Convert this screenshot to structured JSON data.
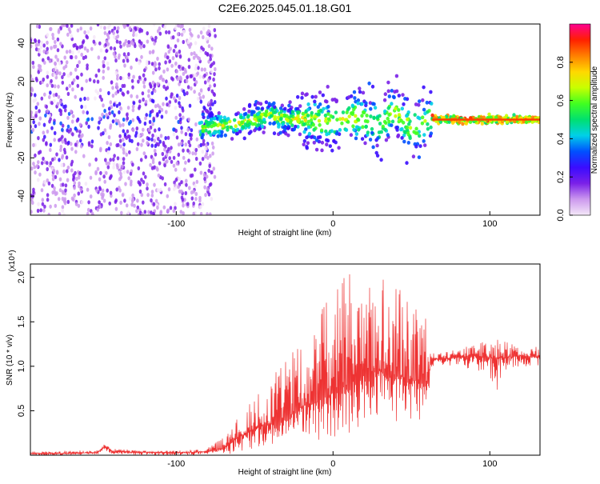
{
  "title": "C2E6.2025.045.01.18.G01",
  "chart_data": [
    {
      "type": "heatmap",
      "xlabel": "Height of straight line (km)",
      "ylabel": "Frequency (Hz)",
      "xlim": [
        -193,
        132
      ],
      "ylim": [
        -50,
        50
      ],
      "x_ticks": [
        "-100",
        "0",
        "100"
      ],
      "y_ticks": [
        "40",
        "20",
        "0",
        "-20",
        "-40"
      ],
      "colorbar": {
        "label": "Normalized spectral amplitude",
        "range": [
          0,
          1
        ],
        "ticks": [
          "0.8",
          "0.6",
          "0.4",
          "0.2",
          "0.0"
        ],
        "colors": [
          "#f4e8f8",
          "#cc99ee",
          "#7a20e8",
          "#3a0cff",
          "#0050ff",
          "#00d0e8",
          "#00e070",
          "#40ff20",
          "#c8ff00",
          "#ffd800",
          "#ff8000",
          "#ff2000",
          "#ff0090"
        ]
      },
      "ridge": {
        "x": [
          -80,
          -70,
          -60,
          -50,
          -40,
          -30,
          -20,
          -10,
          0,
          10,
          20,
          30,
          38,
          45,
          50,
          55,
          60,
          70,
          80,
          100,
          132
        ],
        "y": [
          -4,
          -3,
          -2,
          0,
          3,
          0,
          1,
          0,
          -2,
          2,
          0,
          -3,
          5,
          0,
          -6,
          -3,
          0,
          0,
          0,
          0,
          0
        ]
      }
    },
    {
      "type": "line",
      "xlabel": "Height of straight line (km)",
      "ylabel": "SNR (10 * v/v)",
      "y_exponent_label": "(x10⁴)",
      "xlim": [
        -193,
        132
      ],
      "ylim": [
        0,
        2.15
      ],
      "x_ticks": [
        "-100",
        "0",
        "100"
      ],
      "y_ticks": [
        "2.0",
        "1.5",
        "1.0",
        "0.5"
      ],
      "color": "#ee3333",
      "series": [
        {
          "x": [
            -193,
            -170,
            -150,
            -145,
            -140,
            -120,
            -100,
            -80,
            -70,
            -60,
            -50,
            -40,
            -30,
            -20,
            -10,
            0,
            10,
            20,
            30,
            40,
            50,
            60,
            63,
            70,
            80,
            90,
            100,
            105,
            110,
            120,
            132
          ],
          "y": [
            0.02,
            0.02,
            0.03,
            0.1,
            0.04,
            0.03,
            0.03,
            0.04,
            0.08,
            0.2,
            0.3,
            0.35,
            0.4,
            0.55,
            0.6,
            0.7,
            0.8,
            0.9,
            0.95,
            0.9,
            0.85,
            0.8,
            1.08,
            1.08,
            1.1,
            1.12,
            1.1,
            1.1,
            1.1,
            1.12,
            1.1
          ],
          "y_max": [
            0.04,
            0.05,
            0.06,
            0.16,
            0.08,
            0.05,
            0.05,
            0.08,
            0.2,
            0.45,
            0.65,
            0.85,
            1.1,
            1.3,
            1.6,
            1.9,
            2.05,
            1.9,
            2.12,
            1.95,
            1.75,
            1.55,
            1.15,
            1.15,
            1.2,
            1.25,
            1.3,
            1.35,
            1.3,
            1.25,
            1.25
          ],
          "y_min": [
            0.0,
            0.0,
            0.01,
            0.04,
            0.01,
            0.0,
            0.0,
            0.0,
            0.01,
            0.02,
            0.05,
            0.08,
            0.1,
            0.15,
            0.15,
            0.2,
            0.25,
            0.35,
            0.4,
            0.35,
            0.4,
            0.4,
            1.0,
            1.0,
            1.0,
            0.95,
            0.9,
            0.45,
            0.95,
            1.0,
            1.0
          ]
        }
      ]
    }
  ]
}
